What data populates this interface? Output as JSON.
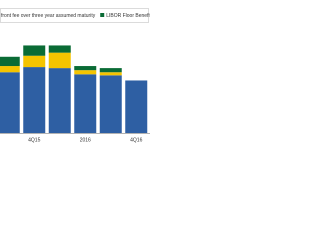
{
  "chart_data": {
    "type": "bar",
    "stacked": true,
    "categories": [
      null,
      "4Q15",
      null,
      "2016",
      null,
      "4Q16"
    ],
    "series": [
      {
        "color": "#2e5fa3",
        "values": [
          59,
          64,
          63,
          57,
          56,
          51
        ]
      },
      {
        "name": "front fee over three year assumed maturity",
        "color": "#f5c400",
        "values": [
          6,
          11,
          15,
          4,
          3,
          0
        ]
      },
      {
        "name": "LIBOR Floor Benefit",
        "color": "#0a6b35",
        "values": [
          9,
          10,
          7,
          4,
          4,
          0
        ]
      }
    ],
    "ylim": [
      0,
      100
    ]
  }
}
